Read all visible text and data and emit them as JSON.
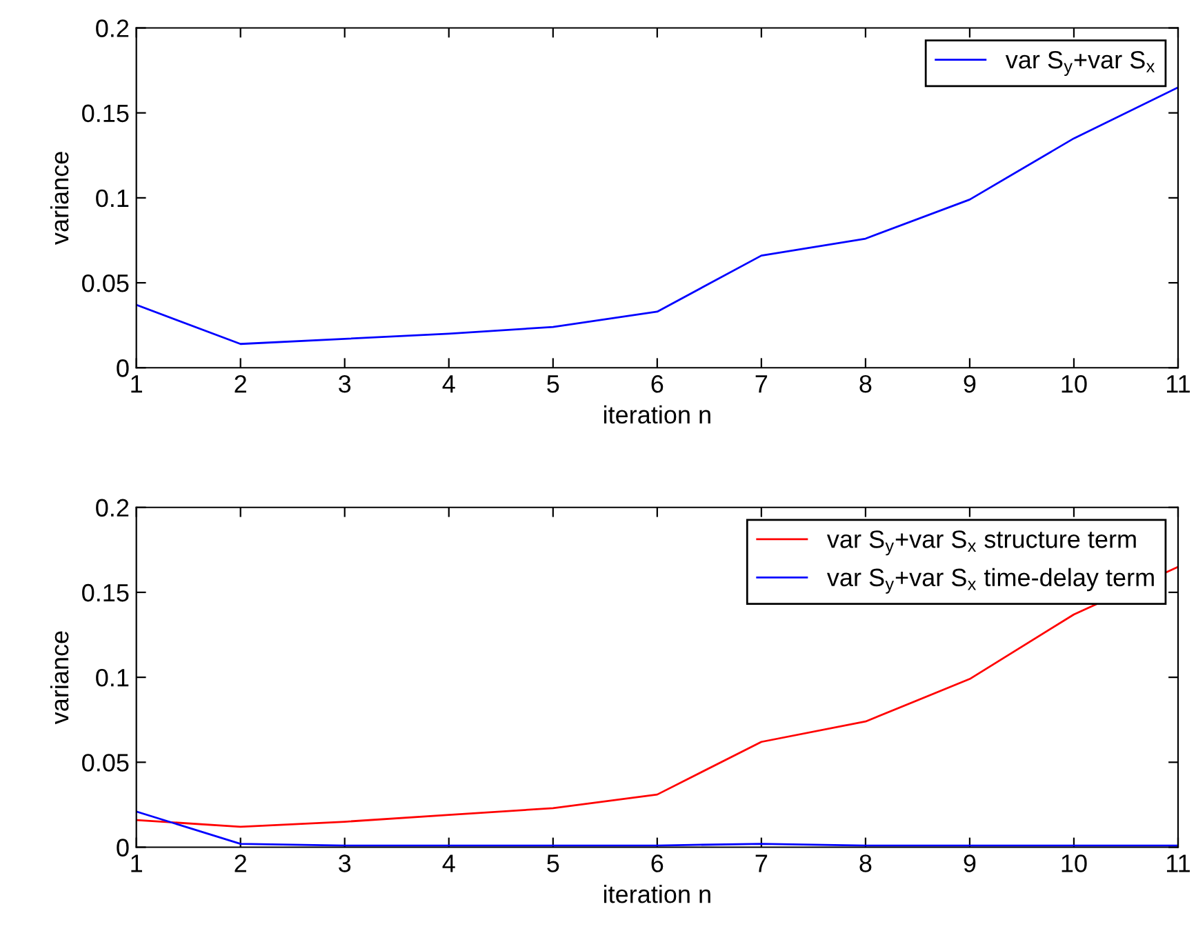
{
  "chart_data": [
    {
      "type": "line",
      "xlabel": "iteration n",
      "ylabel": "variance",
      "x": [
        1,
        2,
        3,
        4,
        5,
        6,
        7,
        8,
        9,
        10,
        11
      ],
      "series": [
        {
          "name": "var S$_{y}$+var S$_{x}$",
          "color": "#0000ff",
          "values": [
            0.037,
            0.014,
            0.017,
            0.02,
            0.024,
            0.033,
            0.066,
            0.076,
            0.099,
            0.135,
            0.165
          ]
        }
      ],
      "xlim": [
        1,
        11
      ],
      "xticks": [
        1,
        2,
        3,
        4,
        5,
        6,
        7,
        8,
        9,
        10,
        11
      ],
      "ylim": [
        0,
        0.2
      ],
      "yticks": [
        0,
        0.05,
        0.1,
        0.15,
        0.2
      ],
      "legend": "top right",
      "grid": false
    },
    {
      "type": "line",
      "xlabel": "iteration n",
      "ylabel": "variance",
      "x": [
        1,
        2,
        3,
        4,
        5,
        6,
        7,
        8,
        9,
        10,
        11
      ],
      "series": [
        {
          "name": "var S$_{y}$+var S$_{x}$ structure term",
          "color": "#ff0000",
          "values": [
            0.016,
            0.012,
            0.015,
            0.019,
            0.023,
            0.031,
            0.062,
            0.074,
            0.099,
            0.137,
            0.165
          ]
        },
        {
          "name": "var S$_{y}$+var S$_{x}$ time-delay term",
          "color": "#0000ff",
          "values": [
            0.021,
            0.002,
            0.001,
            0.001,
            0.001,
            0.001,
            0.002,
            0.001,
            0.001,
            0.001,
            0.001
          ]
        }
      ],
      "xlim": [
        1,
        11
      ],
      "xticks": [
        1,
        2,
        3,
        4,
        5,
        6,
        7,
        8,
        9,
        10,
        11
      ],
      "ylim": [
        0,
        0.2
      ],
      "yticks": [
        0,
        0.05,
        0.1,
        0.15,
        0.2
      ],
      "legend": "top right",
      "grid": false
    }
  ]
}
